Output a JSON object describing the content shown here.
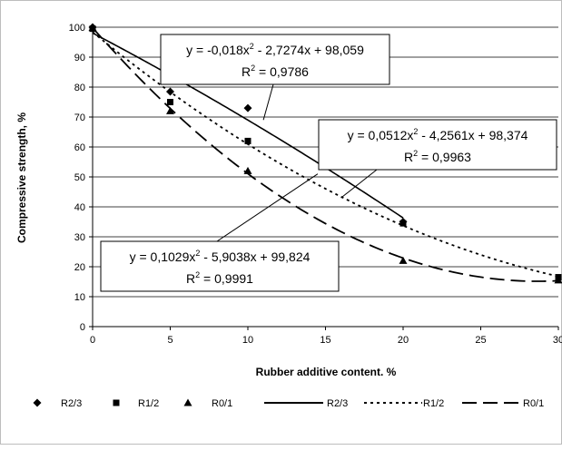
{
  "chart_data": {
    "type": "scatter",
    "xlabel": "Rubber additive content. %",
    "ylabel": "Compressive strength, %",
    "xlim": [
      0,
      30
    ],
    "ylim": [
      0,
      100
    ],
    "x_ticks": [
      0,
      5,
      10,
      15,
      20,
      25,
      30
    ],
    "y_ticks": [
      0,
      10,
      20,
      30,
      40,
      50,
      60,
      70,
      80,
      90,
      100
    ],
    "grid": "horizontal",
    "legend_position": "bottom",
    "series": [
      {
        "name": "R2/3",
        "kind": "points",
        "marker": "diamond",
        "x": [
          0,
          5,
          10,
          20
        ],
        "y": [
          100,
          78.5,
          73,
          35
        ]
      },
      {
        "name": "R1/2",
        "kind": "points",
        "marker": "square",
        "x": [
          0,
          5,
          10,
          20,
          30
        ],
        "y": [
          99.5,
          75,
          62,
          34.5,
          16.5
        ]
      },
      {
        "name": "R0/1",
        "kind": "points",
        "marker": "triangle",
        "x": [
          0,
          5,
          10,
          20,
          30
        ],
        "y": [
          99.8,
          72,
          52,
          22,
          15.5
        ]
      },
      {
        "name": "R2/3",
        "kind": "trend",
        "dash": "solid",
        "coefficients": [
          -0.018,
          -2.7274,
          98.059
        ],
        "x_range": [
          0,
          20
        ]
      },
      {
        "name": "R1/2",
        "kind": "trend",
        "dash": "dotted",
        "coefficients": [
          0.0512,
          -4.2561,
          98.374
        ],
        "x_range": [
          0,
          30
        ]
      },
      {
        "name": "R0/1",
        "kind": "trend",
        "dash": "dashed",
        "coefficients": [
          0.1029,
          -5.9038,
          99.824
        ],
        "x_range": [
          0,
          30
        ]
      }
    ],
    "annotations": [
      {
        "equation": "y = -0,018x",
        "equation_tail": " - 2,7274x + 98,059",
        "r2_prefix": "R",
        "r2_value": " = 0,9786",
        "pointer_x": 11,
        "pointer_y": 69
      },
      {
        "equation": "y = 0,0512x",
        "equation_tail": " - 4,2561x + 98,374",
        "r2_prefix": "R",
        "r2_value": " = 0,9963",
        "pointer_x": 16,
        "pointer_y": 43
      },
      {
        "equation": "y = 0,1029x",
        "equation_tail": " - 5,9038x + 99,824",
        "r2_prefix": "R",
        "r2_value": " = 0,9991",
        "pointer_x": 14.5,
        "pointer_y": 51
      }
    ],
    "superscript": "2"
  }
}
